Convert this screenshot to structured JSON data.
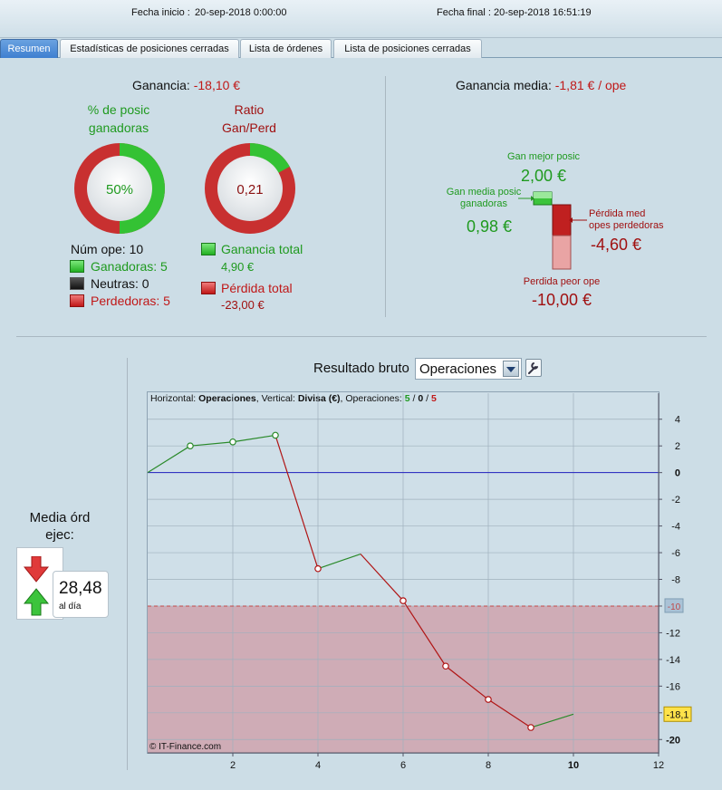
{
  "header": {
    "start_label": "Fecha inicio :",
    "start_value": "20-sep-2018 0:00:00",
    "end_label": "Fecha final :",
    "end_value": "20-sep-2018 16:51:19"
  },
  "tabs": [
    {
      "label": "Resumen",
      "active": true
    },
    {
      "label": "Estadísticas de posiciones cerradas",
      "active": false
    },
    {
      "label": "Lista de órdenes",
      "active": false
    },
    {
      "label": "Lista de posiciones cerradas",
      "active": false
    }
  ],
  "summary": {
    "profit_label": "Ganancia:",
    "profit_value": "-18,10 €",
    "avg_profit_label": "Ganancia media:",
    "avg_profit_value": "-1,81 € / ope",
    "win_pct_title_1": "% de posic",
    "win_pct_title_2": "ganadoras",
    "win_pct_value": "50%",
    "win_pct_fraction": 0.5,
    "ratio_title_1": "Ratio",
    "ratio_title_2": "Gan/Perd",
    "ratio_value": "0,21",
    "ratio_fraction": 0.17,
    "num_ops": "Núm ope: 10",
    "winners": "Ganadoras: 5",
    "neutral": "Neutras: 0",
    "losers": "Perdedoras: 5",
    "total_gain_label": "Ganancia total",
    "total_gain_value": "4,90 €",
    "total_loss_label": "Pérdida total",
    "total_loss_value": "-23,00 €",
    "best_label": "Gan mejor posic",
    "best_value": "2,00 €",
    "avg_win_label_1": "Gan media posic",
    "avg_win_label_2": "ganadoras",
    "avg_win_value": "0,98 €",
    "avg_loss_label_1": "Pérdida med",
    "avg_loss_label_2": "opes perdedoras",
    "avg_loss_value": "-4,60 €",
    "worst_label": "Perdida peor ope",
    "worst_value": "-10,00 €"
  },
  "chart_controls": {
    "title": "Resultado bruto",
    "select_value": "Operaciones"
  },
  "side": {
    "media_label_1": "Media órd",
    "media_label_2": "ejec:",
    "media_value": "28,48",
    "media_unit": "al día"
  },
  "chart_data": {
    "type": "line",
    "header": {
      "h_prefix": "Horizontal: ",
      "h_value": "Operaciones",
      "v_prefix": ", Vertical: ",
      "v_value": "Divisa (€)",
      "ops_prefix": ", Operaciones: ",
      "ops_win": "5",
      "ops_sep1": " / ",
      "ops_neutral": "0",
      "ops_sep2": " / ",
      "ops_lose": "5"
    },
    "watermark": "© IT-Finance.com",
    "xlim": [
      0,
      12
    ],
    "ylim": [
      -21,
      5
    ],
    "x_ticks": [
      "2",
      "4",
      "6",
      "8",
      "10",
      "12"
    ],
    "y_ticks": [
      "4",
      "2",
      "0",
      "-2",
      "-4",
      "-6",
      "-8",
      "-10",
      "-12",
      "-14",
      "-16",
      "-18",
      "-20"
    ],
    "x": [
      0,
      1,
      2,
      3,
      4,
      5,
      6,
      7,
      8,
      9,
      10
    ],
    "y": [
      0,
      2.0,
      2.3,
      2.8,
      -7.2,
      -6.1,
      -9.6,
      -14.5,
      -17.0,
      -19.1,
      -18.1
    ],
    "markers_at": [
      1,
      2,
      3,
      4,
      6,
      7,
      8,
      9
    ],
    "threshold": -10,
    "threshold_label": "-10",
    "last_value_label": "-18,1",
    "colors": {
      "gain": "#2a8a2a",
      "loss": "#b01515",
      "zero": "#2020c0",
      "zone": "#cfa3ad"
    }
  }
}
